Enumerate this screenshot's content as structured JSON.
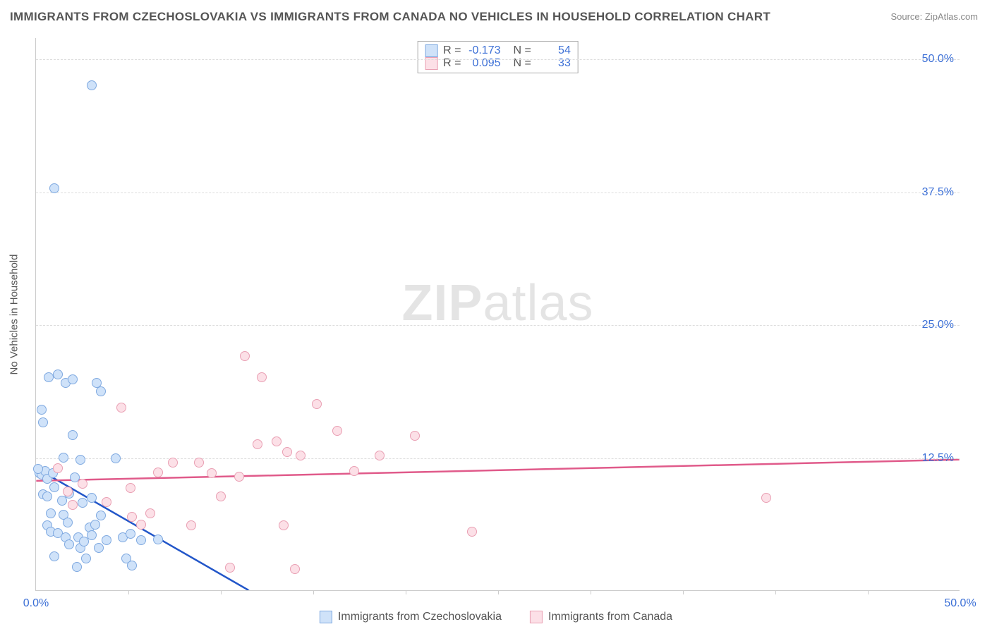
{
  "title": "IMMIGRANTS FROM CZECHOSLOVAKIA VS IMMIGRANTS FROM CANADA NO VEHICLES IN HOUSEHOLD CORRELATION CHART",
  "source_label": "Source: ZipAtlas.com",
  "ylabel": "No Vehicles in Household",
  "watermark_bold": "ZIP",
  "watermark_rest": "atlas",
  "chart": {
    "type": "scatter",
    "xlim": [
      0,
      50
    ],
    "ylim": [
      0,
      52
    ],
    "x_ticks": [
      0,
      50
    ],
    "x_tick_labels": [
      "0.0%",
      "50.0%"
    ],
    "x_minor_ticks": [
      5,
      10,
      15,
      20,
      25,
      30,
      35,
      40,
      45
    ],
    "y_gridlines": [
      12.5,
      25.0,
      37.5,
      50.0
    ],
    "y_tick_labels": [
      "12.5%",
      "25.0%",
      "37.5%",
      "50.0%"
    ],
    "background_color": "#ffffff",
    "grid_color": "#dddddd",
    "axis_color": "#cccccc",
    "point_radius": 7,
    "series": [
      {
        "name": "Immigrants from Czechoslovakia",
        "fill": "#cfe2f9",
        "stroke": "#7fa9e0",
        "line_color": "#2256c9",
        "R": "-0.173",
        "N": "54",
        "trend": {
          "x1": 0,
          "y1": 11.5,
          "x2": 11.5,
          "y2": 0,
          "dashed_x2": 16.5
        },
        "points": [
          [
            0.2,
            11.0
          ],
          [
            0.3,
            10.9
          ],
          [
            0.5,
            11.2
          ],
          [
            0.6,
            10.5
          ],
          [
            0.4,
            9.0
          ],
          [
            0.9,
            11.0
          ],
          [
            1.2,
            20.3
          ],
          [
            1.6,
            19.5
          ],
          [
            3.3,
            19.5
          ],
          [
            3.5,
            18.7
          ],
          [
            0.4,
            15.8
          ],
          [
            2.0,
            14.6
          ],
          [
            1.5,
            12.5
          ],
          [
            2.4,
            12.3
          ],
          [
            4.3,
            12.4
          ],
          [
            2.1,
            10.6
          ],
          [
            0.6,
            8.8
          ],
          [
            1.4,
            8.4
          ],
          [
            0.8,
            7.2
          ],
          [
            0.6,
            6.1
          ],
          [
            0.8,
            5.5
          ],
          [
            1.5,
            7.1
          ],
          [
            1.7,
            6.4
          ],
          [
            1.2,
            5.4
          ],
          [
            1.6,
            5.0
          ],
          [
            1.8,
            4.3
          ],
          [
            2.4,
            4.0
          ],
          [
            2.3,
            5.0
          ],
          [
            2.6,
            4.6
          ],
          [
            2.9,
            5.9
          ],
          [
            3.4,
            4.0
          ],
          [
            3.0,
            5.2
          ],
          [
            3.2,
            6.2
          ],
          [
            3.8,
            4.7
          ],
          [
            3.5,
            7.0
          ],
          [
            4.7,
            5.0
          ],
          [
            5.1,
            5.3
          ],
          [
            5.7,
            4.7
          ],
          [
            6.6,
            4.8
          ],
          [
            4.9,
            3.0
          ],
          [
            2.7,
            3.0
          ],
          [
            1.0,
            3.2
          ],
          [
            2.2,
            2.2
          ],
          [
            5.2,
            2.3
          ],
          [
            3.0,
            8.7
          ],
          [
            1.8,
            9.1
          ],
          [
            1.0,
            9.7
          ],
          [
            2.5,
            8.2
          ],
          [
            0.3,
            17.0
          ],
          [
            3.0,
            47.5
          ],
          [
            1.0,
            37.8
          ],
          [
            0.7,
            20.0
          ],
          [
            2.0,
            19.8
          ],
          [
            0.1,
            11.4
          ]
        ]
      },
      {
        "name": "Immigrants from Canada",
        "fill": "#fce0e7",
        "stroke": "#e99fb3",
        "line_color": "#e05a8a",
        "R": "0.095",
        "N": "33",
        "trend": {
          "x1": 0,
          "y1": 10.3,
          "x2": 50,
          "y2": 12.3
        },
        "points": [
          [
            1.2,
            11.5
          ],
          [
            1.7,
            9.3
          ],
          [
            2.5,
            10.0
          ],
          [
            2.0,
            8.0
          ],
          [
            3.8,
            8.3
          ],
          [
            4.6,
            17.2
          ],
          [
            5.1,
            9.6
          ],
          [
            5.2,
            6.9
          ],
          [
            5.7,
            6.2
          ],
          [
            6.2,
            7.2
          ],
          [
            6.6,
            11.1
          ],
          [
            7.4,
            12.0
          ],
          [
            8.4,
            6.1
          ],
          [
            8.8,
            12.0
          ],
          [
            9.5,
            11.0
          ],
          [
            11.0,
            10.7
          ],
          [
            11.3,
            22.0
          ],
          [
            12.0,
            13.7
          ],
          [
            12.2,
            20.0
          ],
          [
            13.0,
            14.0
          ],
          [
            13.4,
            6.1
          ],
          [
            13.6,
            13.0
          ],
          [
            14.3,
            12.7
          ],
          [
            14.0,
            2.0
          ],
          [
            15.2,
            17.5
          ],
          [
            16.3,
            15.0
          ],
          [
            17.2,
            11.2
          ],
          [
            18.6,
            12.7
          ],
          [
            20.5,
            14.5
          ],
          [
            23.6,
            5.5
          ],
          [
            10.5,
            2.1
          ],
          [
            39.5,
            8.7
          ],
          [
            10.0,
            8.8
          ]
        ]
      }
    ]
  },
  "legend": {
    "items": [
      {
        "label": "Immigrants from Czechoslovakia",
        "fill": "#cfe2f9",
        "stroke": "#7fa9e0"
      },
      {
        "label": "Immigrants from Canada",
        "fill": "#fce0e7",
        "stroke": "#e99fb3"
      }
    ]
  }
}
